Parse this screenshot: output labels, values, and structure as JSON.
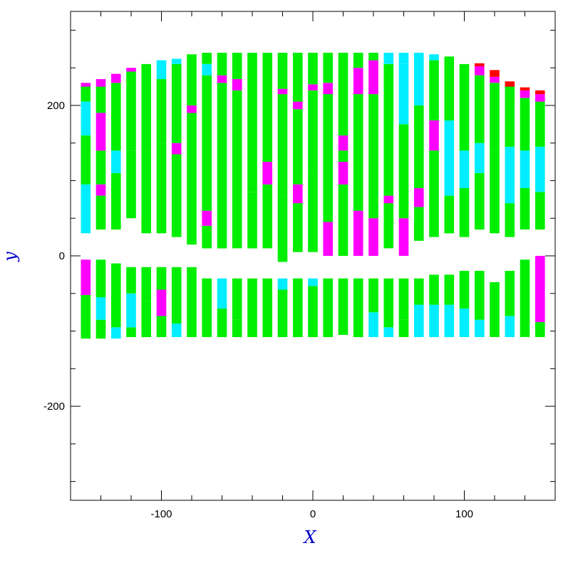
{
  "chart_data": {
    "type": "bar",
    "description_of_encoding": "stacked vertical strips per x position, each segment spans y0..y1 in data units",
    "xlabel": "X",
    "ylabel": "y",
    "xlim": [
      -160,
      160
    ],
    "ylim": [
      -325,
      325
    ],
    "x_ticks": [
      -100,
      0,
      100
    ],
    "y_ticks": [
      -200,
      0,
      200
    ],
    "x_tick_labels": [
      "-100",
      "0",
      "100"
    ],
    "y_tick_labels": [
      "-200",
      "0",
      "200"
    ],
    "grid": false,
    "colors": {
      "green": "#00ee00",
      "cyan": "#00eeff",
      "magenta": "#ff00ff",
      "red": "#ff0000",
      "axis_label": "#0000cc"
    },
    "strips": [
      {
        "x": -150,
        "segments": [
          [
            -110,
            -52,
            "green"
          ],
          [
            -52,
            -5,
            "magenta"
          ],
          [
            30,
            95,
            "cyan"
          ],
          [
            95,
            160,
            "green"
          ],
          [
            160,
            205,
            "cyan"
          ],
          [
            205,
            225,
            "green"
          ],
          [
            225,
            230,
            "magenta"
          ]
        ]
      },
      {
        "x": -140,
        "segments": [
          [
            -110,
            -85,
            "green"
          ],
          [
            -85,
            -55,
            "cyan"
          ],
          [
            -55,
            -5,
            "green"
          ],
          [
            35,
            80,
            "green"
          ],
          [
            80,
            95,
            "magenta"
          ],
          [
            95,
            140,
            "green"
          ],
          [
            140,
            190,
            "magenta"
          ],
          [
            190,
            225,
            "green"
          ],
          [
            225,
            235,
            "magenta"
          ]
        ]
      },
      {
        "x": -130,
        "segments": [
          [
            -110,
            -95,
            "cyan"
          ],
          [
            -95,
            -10,
            "green"
          ],
          [
            35,
            110,
            "green"
          ],
          [
            110,
            140,
            "cyan"
          ],
          [
            140,
            230,
            "green"
          ],
          [
            230,
            242,
            "magenta"
          ]
        ]
      },
      {
        "x": -120,
        "segments": [
          [
            -108,
            -95,
            "green"
          ],
          [
            -95,
            -50,
            "cyan"
          ],
          [
            -50,
            -15,
            "green"
          ],
          [
            50,
            140,
            "green"
          ],
          [
            140,
            245,
            "green"
          ],
          [
            245,
            250,
            "magenta"
          ]
        ]
      },
      {
        "x": -110,
        "segments": [
          [
            -108,
            -60,
            "green"
          ],
          [
            -60,
            -15,
            "green"
          ],
          [
            30,
            140,
            "green"
          ],
          [
            140,
            255,
            "green"
          ]
        ]
      },
      {
        "x": -100,
        "segments": [
          [
            -108,
            -80,
            "green"
          ],
          [
            -80,
            -45,
            "magenta"
          ],
          [
            -45,
            -15,
            "green"
          ],
          [
            30,
            150,
            "green"
          ],
          [
            150,
            235,
            "green"
          ],
          [
            235,
            260,
            "cyan"
          ]
        ]
      },
      {
        "x": -90,
        "segments": [
          [
            -108,
            -90,
            "cyan"
          ],
          [
            -90,
            -15,
            "green"
          ],
          [
            25,
            135,
            "green"
          ],
          [
            135,
            150,
            "magenta"
          ],
          [
            150,
            255,
            "green"
          ],
          [
            255,
            262,
            "cyan"
          ]
        ]
      },
      {
        "x": -80,
        "segments": [
          [
            -108,
            -15,
            "green"
          ],
          [
            15,
            190,
            "green"
          ],
          [
            190,
            200,
            "magenta"
          ],
          [
            200,
            268,
            "green"
          ]
        ]
      },
      {
        "x": -70,
        "segments": [
          [
            -108,
            -55,
            "green"
          ],
          [
            -55,
            -30,
            "green"
          ],
          [
            10,
            40,
            "green"
          ],
          [
            40,
            60,
            "magenta"
          ],
          [
            60,
            240,
            "green"
          ],
          [
            240,
            255,
            "cyan"
          ],
          [
            255,
            270,
            "green"
          ]
        ]
      },
      {
        "x": -60,
        "segments": [
          [
            -108,
            -70,
            "green"
          ],
          [
            -70,
            -30,
            "cyan"
          ],
          [
            10,
            230,
            "green"
          ],
          [
            230,
            240,
            "magenta"
          ],
          [
            240,
            270,
            "green"
          ]
        ]
      },
      {
        "x": -50,
        "segments": [
          [
            -108,
            -85,
            "green"
          ],
          [
            -85,
            -30,
            "green"
          ],
          [
            10,
            220,
            "green"
          ],
          [
            220,
            235,
            "magenta"
          ],
          [
            235,
            270,
            "green"
          ]
        ]
      },
      {
        "x": -40,
        "segments": [
          [
            -108,
            -30,
            "green"
          ],
          [
            10,
            85,
            "green"
          ],
          [
            85,
            270,
            "green"
          ]
        ]
      },
      {
        "x": -30,
        "segments": [
          [
            -108,
            -60,
            "green"
          ],
          [
            -60,
            -30,
            "green"
          ],
          [
            10,
            95,
            "green"
          ],
          [
            95,
            125,
            "magenta"
          ],
          [
            125,
            225,
            "green"
          ],
          [
            225,
            270,
            "green"
          ]
        ]
      },
      {
        "x": -20,
        "segments": [
          [
            -108,
            -45,
            "green"
          ],
          [
            -45,
            -30,
            "cyan"
          ],
          [
            -8,
            80,
            "green"
          ],
          [
            80,
            215,
            "green"
          ],
          [
            215,
            222,
            "magenta"
          ],
          [
            222,
            270,
            "green"
          ]
        ]
      },
      {
        "x": -10,
        "segments": [
          [
            -108,
            -30,
            "green"
          ],
          [
            5,
            70,
            "green"
          ],
          [
            70,
            95,
            "magenta"
          ],
          [
            95,
            195,
            "green"
          ],
          [
            195,
            205,
            "magenta"
          ],
          [
            205,
            270,
            "green"
          ]
        ]
      },
      {
        "x": 0,
        "segments": [
          [
            -108,
            -40,
            "green"
          ],
          [
            -40,
            -30,
            "cyan"
          ],
          [
            5,
            110,
            "green"
          ],
          [
            110,
            220,
            "green"
          ],
          [
            220,
            228,
            "magenta"
          ],
          [
            228,
            270,
            "green"
          ]
        ]
      },
      {
        "x": 10,
        "segments": [
          [
            -108,
            -30,
            "green"
          ],
          [
            0,
            45,
            "magenta"
          ],
          [
            45,
            215,
            "green"
          ],
          [
            215,
            230,
            "magenta"
          ],
          [
            230,
            270,
            "green"
          ]
        ]
      },
      {
        "x": 20,
        "segments": [
          [
            -105,
            -30,
            "green"
          ],
          [
            0,
            95,
            "green"
          ],
          [
            95,
            125,
            "magenta"
          ],
          [
            125,
            140,
            "green"
          ],
          [
            140,
            160,
            "magenta"
          ],
          [
            160,
            270,
            "green"
          ]
        ]
      },
      {
        "x": 30,
        "segments": [
          [
            -108,
            -30,
            "green"
          ],
          [
            0,
            60,
            "magenta"
          ],
          [
            60,
            215,
            "green"
          ],
          [
            215,
            250,
            "magenta"
          ],
          [
            250,
            270,
            "green"
          ]
        ]
      },
      {
        "x": 40,
        "segments": [
          [
            -108,
            -75,
            "cyan"
          ],
          [
            -75,
            -30,
            "green"
          ],
          [
            0,
            50,
            "magenta"
          ],
          [
            50,
            90,
            "green"
          ],
          [
            90,
            215,
            "green"
          ],
          [
            215,
            260,
            "magenta"
          ],
          [
            260,
            270,
            "green"
          ]
        ]
      },
      {
        "x": 50,
        "segments": [
          [
            -108,
            -95,
            "cyan"
          ],
          [
            -95,
            -30,
            "green"
          ],
          [
            10,
            70,
            "green"
          ],
          [
            70,
            80,
            "magenta"
          ],
          [
            80,
            255,
            "green"
          ],
          [
            255,
            270,
            "cyan"
          ]
        ]
      },
      {
        "x": 60,
        "segments": [
          [
            -108,
            -85,
            "green"
          ],
          [
            -85,
            -30,
            "green"
          ],
          [
            0,
            50,
            "magenta"
          ],
          [
            50,
            175,
            "green"
          ],
          [
            175,
            255,
            "cyan"
          ],
          [
            255,
            270,
            "cyan"
          ]
        ]
      },
      {
        "x": 70,
        "segments": [
          [
            -108,
            -65,
            "cyan"
          ],
          [
            -65,
            -30,
            "green"
          ],
          [
            20,
            65,
            "green"
          ],
          [
            65,
            90,
            "magenta"
          ],
          [
            90,
            200,
            "green"
          ],
          [
            200,
            270,
            "cyan"
          ]
        ]
      },
      {
        "x": 80,
        "segments": [
          [
            -108,
            -65,
            "cyan"
          ],
          [
            -65,
            -25,
            "green"
          ],
          [
            25,
            140,
            "green"
          ],
          [
            140,
            180,
            "magenta"
          ],
          [
            180,
            260,
            "green"
          ],
          [
            260,
            268,
            "cyan"
          ]
        ]
      },
      {
        "x": 90,
        "segments": [
          [
            -108,
            -65,
            "cyan"
          ],
          [
            -65,
            -25,
            "green"
          ],
          [
            30,
            80,
            "green"
          ],
          [
            80,
            180,
            "cyan"
          ],
          [
            180,
            265,
            "green"
          ]
        ]
      },
      {
        "x": 100,
        "segments": [
          [
            -108,
            -70,
            "cyan"
          ],
          [
            -70,
            -20,
            "green"
          ],
          [
            25,
            90,
            "green"
          ],
          [
            90,
            140,
            "cyan"
          ],
          [
            140,
            255,
            "green"
          ]
        ]
      },
      {
        "x": 110,
        "segments": [
          [
            -108,
            -85,
            "cyan"
          ],
          [
            -85,
            -20,
            "green"
          ],
          [
            35,
            110,
            "green"
          ],
          [
            110,
            150,
            "cyan"
          ],
          [
            150,
            240,
            "green"
          ],
          [
            240,
            252,
            "magenta"
          ],
          [
            252,
            256,
            "red"
          ]
        ]
      },
      {
        "x": 120,
        "segments": [
          [
            -108,
            -35,
            "green"
          ],
          [
            30,
            140,
            "green"
          ],
          [
            140,
            230,
            "green"
          ],
          [
            230,
            238,
            "magenta"
          ],
          [
            238,
            247,
            "red"
          ]
        ]
      },
      {
        "x": 130,
        "segments": [
          [
            -108,
            -80,
            "cyan"
          ],
          [
            -80,
            -20,
            "green"
          ],
          [
            25,
            70,
            "green"
          ],
          [
            70,
            145,
            "cyan"
          ],
          [
            145,
            225,
            "green"
          ],
          [
            225,
            232,
            "red"
          ]
        ]
      },
      {
        "x": 140,
        "segments": [
          [
            -108,
            -55,
            "green"
          ],
          [
            -55,
            -5,
            "green"
          ],
          [
            35,
            90,
            "green"
          ],
          [
            90,
            140,
            "cyan"
          ],
          [
            140,
            210,
            "green"
          ],
          [
            210,
            220,
            "magenta"
          ],
          [
            220,
            224,
            "red"
          ]
        ]
      },
      {
        "x": 150,
        "segments": [
          [
            -108,
            -88,
            "green"
          ],
          [
            -88,
            0,
            "magenta"
          ],
          [
            35,
            85,
            "green"
          ],
          [
            85,
            145,
            "cyan"
          ],
          [
            145,
            205,
            "green"
          ],
          [
            205,
            215,
            "magenta"
          ],
          [
            215,
            220,
            "red"
          ]
        ]
      }
    ]
  }
}
